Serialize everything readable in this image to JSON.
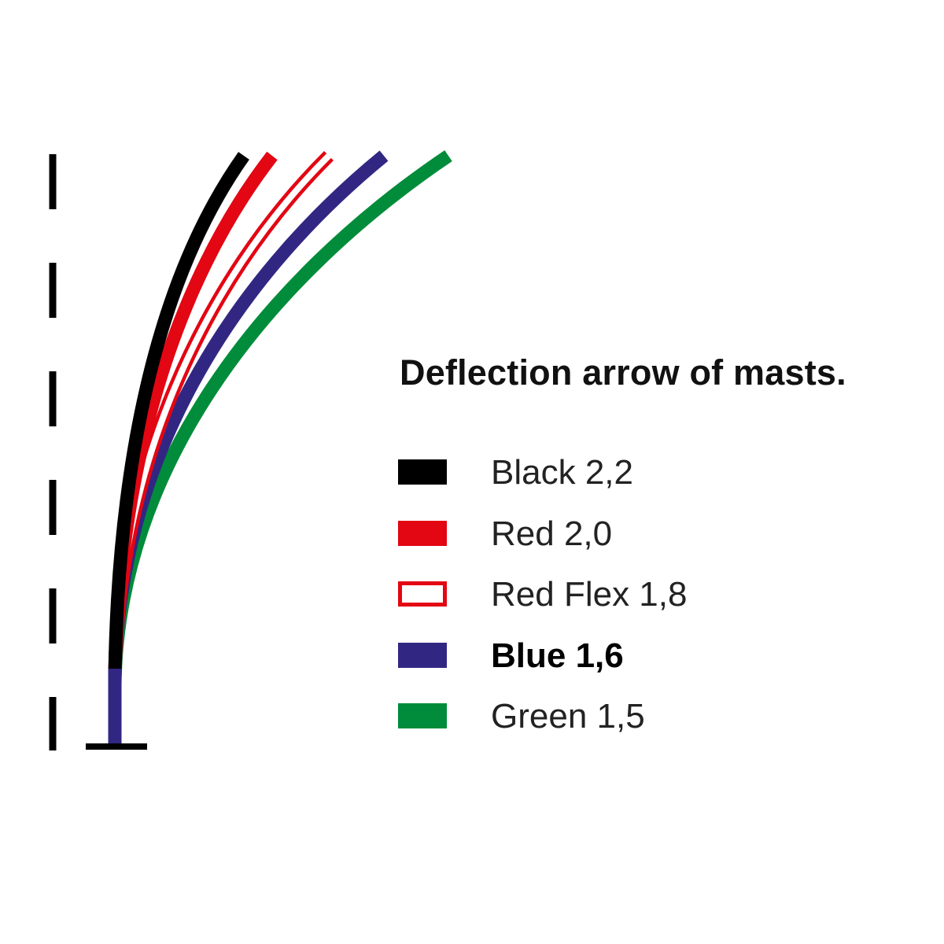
{
  "title": "Deflection arrow of masts.",
  "colors": {
    "black": "#000000",
    "red": "#e30613",
    "blue": "#312783",
    "green": "#008c3a",
    "axis": "#000000"
  },
  "legend": [
    {
      "label": "Black 2,2",
      "color": "#000000",
      "style": "filled",
      "bold": false
    },
    {
      "label": "Red 2,0",
      "color": "#e30613",
      "style": "filled",
      "bold": false
    },
    {
      "label": "Red Flex 1,8",
      "color": "#e30613",
      "style": "outline",
      "bold": false
    },
    {
      "label": "Blue 1,6",
      "color": "#312783",
      "style": "filled",
      "bold": true
    },
    {
      "label": "Green 1,5",
      "color": "#008c3a",
      "style": "filled",
      "bold": false
    }
  ]
}
